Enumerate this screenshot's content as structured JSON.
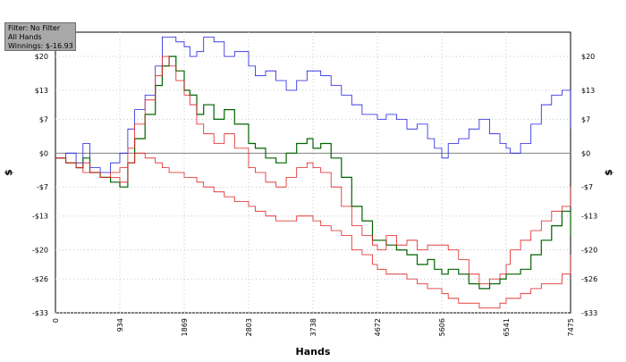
{
  "filter_box": {
    "filter": "Filter: No Filter",
    "hands": "All Hands",
    "winnings": "Winnings: $-16.93"
  },
  "chart_data": {
    "type": "line",
    "title": "",
    "xlabel": "Hands",
    "ylabel": "$",
    "xlim": [
      0,
      7475
    ],
    "ylim": [
      -33,
      25
    ],
    "x_ticks": [
      0,
      934,
      1869,
      2803,
      3738,
      4672,
      5606,
      6541,
      7475
    ],
    "y_ticks": [
      {
        "value": 20,
        "label": "$20"
      },
      {
        "value": 13,
        "label": "$13"
      },
      {
        "value": 7,
        "label": "$7"
      },
      {
        "value": 0,
        "label": "$0"
      },
      {
        "value": -7,
        "label": "-$7"
      },
      {
        "value": -13,
        "label": "-$13"
      },
      {
        "value": -20,
        "label": "-$20"
      },
      {
        "value": -26,
        "label": "-$26"
      },
      {
        "value": -33,
        "label": "-$33"
      }
    ],
    "grid": true,
    "colors": {
      "blue": "#2020e0",
      "green": "#006400",
      "red": "#e02020",
      "zero": "#808080"
    },
    "series": [
      {
        "color": "blue",
        "x": [
          0,
          150,
          300,
          400,
          500,
          650,
          800,
          934,
          1050,
          1150,
          1300,
          1450,
          1550,
          1650,
          1750,
          1869,
          1950,
          2050,
          2150,
          2300,
          2450,
          2600,
          2803,
          2900,
          3050,
          3200,
          3350,
          3500,
          3650,
          3738,
          3850,
          4000,
          4150,
          4300,
          4450,
          4600,
          4672,
          4800,
          4950,
          5100,
          5250,
          5400,
          5500,
          5606,
          5700,
          5850,
          6000,
          6150,
          6300,
          6450,
          6541,
          6600,
          6750,
          6900,
          7050,
          7200,
          7350,
          7475
        ],
        "y": [
          -1,
          0,
          -2,
          2,
          -3,
          -4,
          -2,
          0,
          5,
          9,
          12,
          18,
          24,
          24,
          23,
          22,
          20,
          21,
          24,
          23,
          20,
          21,
          18,
          16,
          17,
          15,
          13,
          15,
          17,
          17,
          16,
          14,
          12,
          10,
          8,
          8,
          7,
          8,
          7,
          5,
          6,
          3,
          1,
          -1,
          2,
          3,
          5,
          7,
          4,
          2,
          1,
          0,
          2,
          6,
          10,
          12,
          13,
          5
        ]
      },
      {
        "color": "green",
        "x": [
          0,
          150,
          300,
          400,
          500,
          650,
          800,
          934,
          1050,
          1150,
          1300,
          1450,
          1550,
          1650,
          1750,
          1869,
          1950,
          2050,
          2150,
          2300,
          2450,
          2600,
          2803,
          2900,
          3050,
          3200,
          3350,
          3500,
          3650,
          3738,
          3850,
          4000,
          4150,
          4300,
          4450,
          4600,
          4672,
          4800,
          4950,
          5100,
          5250,
          5400,
          5500,
          5606,
          5700,
          5850,
          6000,
          6150,
          6300,
          6450,
          6541,
          6600,
          6750,
          6900,
          7050,
          7200,
          7350,
          7475
        ],
        "y": [
          -1,
          -2,
          -3,
          -1,
          -4,
          -5,
          -6,
          -7,
          -2,
          3,
          8,
          14,
          18,
          20,
          17,
          13,
          12,
          8,
          10,
          7,
          9,
          6,
          2,
          1,
          -1,
          -2,
          0,
          2,
          3,
          1,
          2,
          -1,
          -5,
          -11,
          -14,
          -18,
          -18,
          -19,
          -20,
          -21,
          -23,
          -22,
          -24,
          -25,
          -24,
          -25,
          -27,
          -28,
          -27,
          -26,
          -25,
          -25,
          -24,
          -21,
          -18,
          -15,
          -12,
          -17
        ]
      },
      {
        "color": "red",
        "x": [
          0,
          150,
          300,
          400,
          500,
          650,
          800,
          934,
          1050,
          1150,
          1300,
          1450,
          1550,
          1650,
          1750,
          1869,
          1950,
          2050,
          2150,
          2300,
          2450,
          2600,
          2803,
          2900,
          3050,
          3200,
          3350,
          3500,
          3650,
          3738,
          3850,
          4000,
          4150,
          4300,
          4450,
          4600,
          4672,
          4800,
          4950,
          5100,
          5250,
          5400,
          5500,
          5606,
          5700,
          5850,
          6000,
          6150,
          6300,
          6450,
          6541,
          6600,
          6750,
          6900,
          7050,
          7200,
          7350,
          7475
        ],
        "y": [
          -1,
          -2,
          -3,
          -2,
          -4,
          -5,
          -4,
          -3,
          1,
          6,
          11,
          16,
          20,
          18,
          15,
          12,
          10,
          6,
          4,
          2,
          4,
          1,
          -3,
          -4,
          -6,
          -7,
          -5,
          -3,
          -2,
          -3,
          -4,
          -7,
          -11,
          -15,
          -17,
          -19,
          -20,
          -17,
          -19,
          -18,
          -20,
          -19,
          -19,
          -19,
          -20,
          -22,
          -25,
          -27,
          -26,
          -25,
          -23,
          -20,
          -18,
          -16,
          -14,
          -12,
          -11,
          -7
        ]
      },
      {
        "color": "red",
        "x": [
          0,
          150,
          300,
          400,
          500,
          650,
          800,
          934,
          1050,
          1150,
          1300,
          1450,
          1550,
          1650,
          1750,
          1869,
          1950,
          2050,
          2150,
          2300,
          2450,
          2600,
          2803,
          2900,
          3050,
          3200,
          3350,
          3500,
          3650,
          3738,
          3850,
          4000,
          4150,
          4300,
          4450,
          4600,
          4672,
          4800,
          4950,
          5100,
          5250,
          5400,
          5500,
          5606,
          5700,
          5850,
          6000,
          6150,
          6300,
          6450,
          6541,
          6600,
          6750,
          6900,
          7050,
          7200,
          7350,
          7475
        ],
        "y": [
          -1,
          -2,
          -3,
          -4,
          -4,
          -5,
          -5,
          -6,
          -2,
          0,
          -1,
          -2,
          -3,
          -4,
          -4,
          -5,
          -5,
          -6,
          -7,
          -8,
          -9,
          -10,
          -11,
          -12,
          -13,
          -14,
          -14,
          -13,
          -13,
          -14,
          -15,
          -16,
          -17,
          -20,
          -21,
          -23,
          -24,
          -25,
          -25,
          -26,
          -27,
          -28,
          -28,
          -29,
          -30,
          -31,
          -31,
          -32,
          -32,
          -31,
          -30,
          -30,
          -29,
          -28,
          -27,
          -27,
          -25,
          -21
        ]
      }
    ]
  }
}
